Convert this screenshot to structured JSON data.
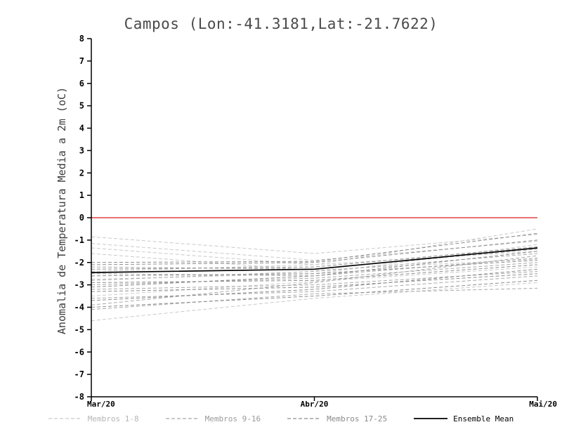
{
  "chart_data": {
    "type": "line",
    "title": "Campos (Lon:-41.3181,Lat:-21.7622)",
    "xlabel": "",
    "ylabel": "Anomalia de Temperatura Media a 2m (oC)",
    "x_tick_labels": [
      "Mar/20",
      "Abr/20",
      "Mai/20"
    ],
    "ylim": [
      -8,
      8
    ],
    "y_ticks": [
      8,
      7,
      6,
      5,
      4,
      3,
      2,
      1,
      0,
      -1,
      -2,
      -3,
      -4,
      -5,
      -6,
      -7,
      -8
    ],
    "grid": false,
    "zero_line": {
      "value": 0,
      "color": "#e04040"
    },
    "axis_color": "#000000",
    "groups": [
      {
        "name": "Membros 1-8",
        "color": "#c9c9c9",
        "style": "dashed",
        "members": [
          [
            -0.85,
            -1.6,
            -0.75
          ],
          [
            -1.15,
            -1.9,
            -1.05
          ],
          [
            -1.35,
            -2.1,
            -1.5
          ],
          [
            -1.6,
            -2.35,
            -1.85
          ],
          [
            -2.4,
            -2.1,
            -0.5
          ],
          [
            -2.75,
            -2.5,
            -1.2
          ],
          [
            -3.5,
            -2.85,
            -2.2
          ],
          [
            -4.6,
            -3.6,
            -2.9
          ]
        ]
      },
      {
        "name": "Membros 9-16",
        "color": "#a8a8a8",
        "style": "dashed",
        "members": [
          [
            -2.2,
            -2.3,
            -1.4
          ],
          [
            -2.5,
            -2.6,
            -1.8
          ],
          [
            -2.8,
            -2.4,
            -1.6
          ],
          [
            -3.0,
            -2.7,
            -2.0
          ],
          [
            -3.2,
            -3.0,
            -2.4
          ],
          [
            -3.6,
            -3.3,
            -2.6
          ],
          [
            -3.9,
            -2.9,
            -1.7
          ],
          [
            -4.1,
            -3.4,
            -3.15
          ]
        ]
      },
      {
        "name": "Membros 17-25",
        "color": "#8e8e8e",
        "style": "dashed",
        "members": [
          [
            -2.0,
            -1.95,
            -0.7
          ],
          [
            -2.3,
            -2.2,
            -1.3
          ],
          [
            -2.6,
            -2.5,
            -1.9
          ],
          [
            -2.9,
            -2.8,
            -2.1
          ],
          [
            -3.1,
            -2.6,
            -1.5
          ],
          [
            -3.3,
            -3.1,
            -2.5
          ],
          [
            -3.7,
            -3.2,
            -2.3
          ],
          [
            -4.0,
            -3.5,
            -2.8
          ],
          [
            -2.1,
            -2.0,
            -1.0
          ]
        ]
      }
    ],
    "ensemble_mean": {
      "name": "Ensemble Mean",
      "color": "#000000",
      "style": "solid",
      "values": [
        -2.45,
        -2.3,
        -1.35
      ]
    },
    "legend_position": "bottom"
  },
  "legend": {
    "items": [
      {
        "label": "Membros 1-8",
        "color": "#b5b5b5",
        "line_color": "#c9c9c9",
        "style": "dashed"
      },
      {
        "label": "Membros 9-16",
        "color": "#9a9a9a",
        "line_color": "#a8a8a8",
        "style": "dashed"
      },
      {
        "label": "Membros 17-25",
        "color": "#8a8a8a",
        "line_color": "#8e8e8e",
        "style": "dashed"
      },
      {
        "label": "Ensemble Mean",
        "color": "#000000",
        "line_color": "#000000",
        "style": "solid"
      }
    ]
  }
}
